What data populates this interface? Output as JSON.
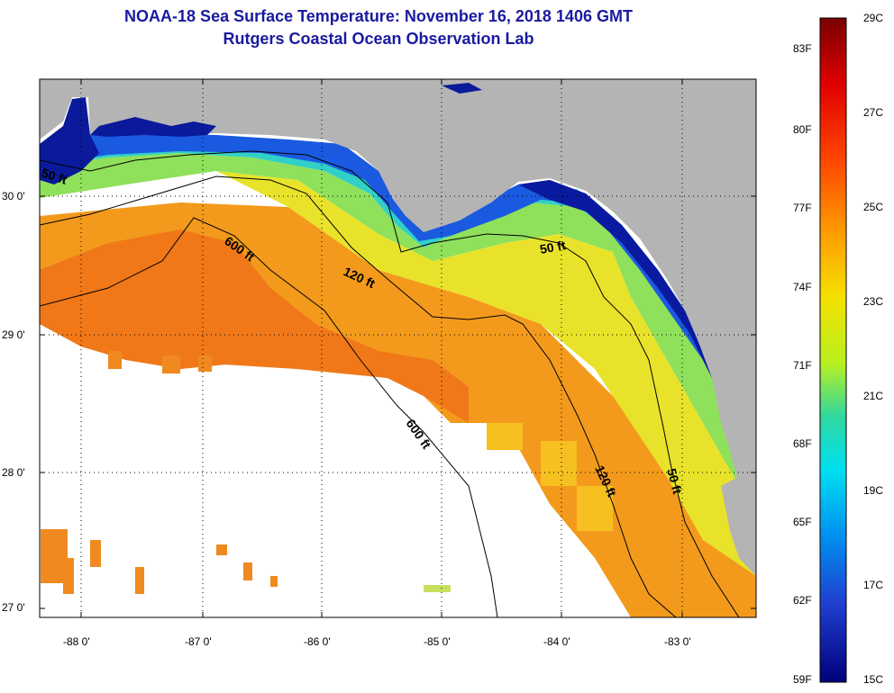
{
  "title": "NOAA-18 Sea Surface Temperature:  November 16, 2018 1406 GMT",
  "subtitle": "Rutgers Coastal Ocean Observation Lab",
  "lat_ticks": [
    "30 0'",
    "29 0'",
    "28 0'",
    "27 0'"
  ],
  "lon_ticks": [
    "-88 0'",
    "-87 0'",
    "-86 0'",
    "-85 0'",
    "-84 0'",
    "-83 0'"
  ],
  "contours": [
    "50 ft",
    "600 ft",
    "120 ft",
    "50 ft",
    "600 ft",
    "120 ft",
    "50 ft"
  ],
  "colorbar": {
    "fahrenheit": [
      "83F",
      "80F",
      "77F",
      "74F",
      "71F",
      "68F",
      "65F",
      "62F",
      "59F"
    ],
    "celsius": [
      "29C",
      "27C",
      "25C",
      "23C",
      "21C",
      "19C",
      "17C",
      "15C"
    ],
    "colors": [
      "#8b0000",
      "#ff1a00",
      "#ff9a00",
      "#e6f000",
      "#30d2b8",
      "#00b8f0",
      "#1a6ae6",
      "#00008b"
    ]
  },
  "colors": {
    "land": "#b4b4b4",
    "no_data": "#ffffff",
    "title": "#1a1aa0"
  }
}
